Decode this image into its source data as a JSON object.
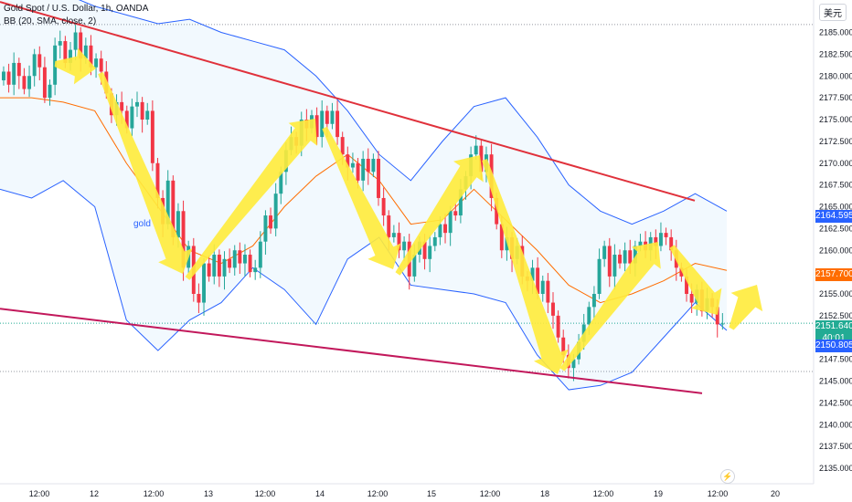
{
  "header": {
    "symbol_title": "Gold Spot / U.S. Dollar, 1h, OANDA",
    "indicator_label": "BB (20, SMA, close, 2)",
    "currency_button": "美元"
  },
  "annotation_label": "gold",
  "price_tags": {
    "upper_band": "2164.595",
    "middle_band": "2157.700",
    "last_price": "2151.640",
    "countdown": "40:01",
    "lower_band": "2150.805"
  },
  "colors": {
    "up": "#26a69a",
    "down": "#f23645",
    "band": "#2962ff",
    "basis": "#ff6d00",
    "channel": "#e0313b",
    "arrow": "#ffeb3b",
    "tag_blue": "#2962ff",
    "tag_orange": "#ff6d00",
    "tag_green": "#22ab94"
  },
  "chart_data": {
    "type": "candlestick",
    "x_ticks": [
      "12:00",
      "12",
      "12:00",
      "13",
      "12:00",
      "14",
      "12:00",
      "15",
      "12:00",
      "18",
      "12:00",
      "19",
      "12:00",
      "20"
    ],
    "y_ticks": [
      2135.0,
      2137.5,
      2140.0,
      2142.5,
      2145.0,
      2147.5,
      2150.0,
      2152.5,
      2155.0,
      2157.5,
      2160.0,
      2162.5,
      2165.0,
      2167.5,
      2170.0,
      2172.5,
      2175.0,
      2177.5,
      2180.0,
      2182.5,
      2185.0
    ],
    "ylim": [
      2133.5,
      2187.5
    ],
    "dotted_levels": [
      2185.9,
      2146.1
    ],
    "last_price": 2151.64,
    "bb_upper_last": 2164.595,
    "bb_basis_last": 2157.7,
    "bb_lower_last": 2150.805,
    "candles_close": [
      2180.5,
      2179.0,
      2181.5,
      2180.0,
      2178.5,
      2180.0,
      2182.5,
      2181.0,
      2177.5,
      2179.0,
      2183.5,
      2184.0,
      2181.5,
      2183.0,
      2185.0,
      2182.0,
      2183.5,
      2181.0,
      2182.0,
      2180.5,
      2178.0,
      2175.5,
      2177.0,
      2176.0,
      2174.0,
      2176.5,
      2177.0,
      2175.0,
      2176.0,
      2170.0,
      2166.0,
      2163.0,
      2168.0,
      2161.5,
      2164.5,
      2158.0,
      2160.5,
      2155.0,
      2154.0,
      2158.5,
      2157.0,
      2159.5,
      2157.0,
      2159.0,
      2158.0,
      2160.0,
      2158.5,
      2159.5,
      2157.5,
      2158.0,
      2161.0,
      2164.0,
      2162.5,
      2166.5,
      2169.0,
      2171.5,
      2173.0,
      2172.0,
      2175.0,
      2174.0,
      2175.5,
      2173.0,
      2176.0,
      2174.5,
      2176.0,
      2173.0,
      2171.0,
      2169.5,
      2170.0,
      2168.0,
      2170.5,
      2169.0,
      2170.5,
      2166.0,
      2164.0,
      2161.5,
      2162.0,
      2160.0,
      2161.0,
      2157.0,
      2159.5,
      2161.0,
      2159.0,
      2160.5,
      2161.5,
      2163.0,
      2162.0,
      2164.5,
      2164.0,
      2167.0,
      2168.5,
      2171.0,
      2172.0,
      2169.0,
      2171.0,
      2166.0,
      2163.0,
      2160.0,
      2161.5,
      2159.0,
      2160.5,
      2157.0,
      2156.5,
      2158.0,
      2155.0,
      2156.5,
      2154.0,
      2152.5,
      2150.0,
      2148.0,
      2146.5,
      2147.5,
      2149.5,
      2151.5,
      2153.5,
      2155.0,
      2159.0,
      2160.5,
      2157.0,
      2159.5,
      2158.5,
      2160.0,
      2158.5,
      2160.5,
      2161.0,
      2160.0,
      2161.5,
      2160.5,
      2162.0,
      2161.5,
      2160.0,
      2158.0,
      2157.0,
      2155.0,
      2154.0,
      2155.5,
      2153.0,
      2154.5,
      2153.5,
      2151.5,
      2151.6
    ],
    "bb_upper": [
      2190,
      2189,
      2189.5,
      2188,
      2187,
      2186,
      2186.5,
      2185,
      2184,
      2183,
      2180,
      2176,
      2171,
      2168,
      2172.5,
      2176.5,
      2177.5,
      2173,
      2167.5,
      2164.5,
      2163,
      2164.5,
      2166.5,
      2164.5
    ],
    "bb_basis": [
      2177.5,
      2177.5,
      2177,
      2176,
      2170,
      2165,
      2160,
      2158.5,
      2160.5,
      2165,
      2168.5,
      2171,
      2168,
      2163,
      2163.5,
      2167,
      2163.5,
      2160,
      2156,
      2154,
      2155,
      2156.5,
      2158.5,
      2157.7
    ],
    "bb_lower": [
      2167,
      2166,
      2168,
      2165,
      2152,
      2148.5,
      2152,
      2154,
      2158,
      2155.5,
      2151.5,
      2159,
      2161.5,
      2156,
      2155.5,
      2155,
      2154,
      2148,
      2144,
      2144.5,
      2146,
      2150,
      2154,
      2150.805
    ],
    "channel_upper": [
      [
        0,
        2188.5
      ],
      [
        760,
        2165.7
      ]
    ],
    "channel_lower": [
      [
        0,
        2153.3
      ],
      [
        768,
        2143.6
      ]
    ]
  }
}
